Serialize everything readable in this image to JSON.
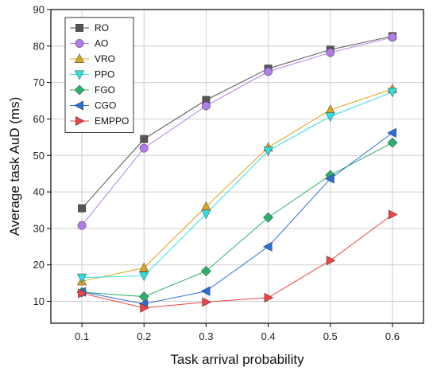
{
  "chart_data": {
    "type": "line",
    "title": "",
    "xlabel": "Task arrival probability",
    "ylabel": "Average task AuD (ms)",
    "x": [
      0.1,
      0.2,
      0.3,
      0.4,
      0.5,
      0.6
    ],
    "x_tick_labels": [
      "0.1",
      "0.2",
      "0.3",
      "0.4",
      "0.5",
      "0.6"
    ],
    "xlim": [
      0.05,
      0.65
    ],
    "ylim": [
      4,
      90
    ],
    "y_ticks": [
      10,
      20,
      30,
      40,
      50,
      60,
      70,
      80,
      90
    ],
    "grid": true,
    "legend_position": "top-left",
    "series": [
      {
        "name": "RO",
        "marker": "square",
        "color": "#555555",
        "values": [
          35.5,
          54.5,
          65.2,
          73.8,
          79.0,
          82.7
        ]
      },
      {
        "name": "AO",
        "marker": "circle",
        "color": "#b07ce8",
        "values": [
          30.8,
          52.0,
          63.6,
          73.0,
          78.2,
          82.4
        ]
      },
      {
        "name": "VRO",
        "marker": "triangle-up",
        "color": "#d9a520",
        "values": [
          15.5,
          19.2,
          36.0,
          52.2,
          62.5,
          68.2
        ]
      },
      {
        "name": "PPO",
        "marker": "triangle-down",
        "color": "#2ee0e0",
        "values": [
          16.5,
          17.0,
          34.0,
          51.3,
          60.7,
          67.4
        ]
      },
      {
        "name": "FGO",
        "marker": "diamond",
        "color": "#2eae6c",
        "values": [
          12.5,
          11.3,
          18.3,
          33.0,
          44.6,
          53.5
        ]
      },
      {
        "name": "CGO",
        "marker": "triangle-left",
        "color": "#2a6fd6",
        "values": [
          12.6,
          9.3,
          12.8,
          25.0,
          43.6,
          56.2
        ]
      },
      {
        "name": "EMPPO",
        "marker": "triangle-right",
        "color": "#ee4444",
        "values": [
          12.2,
          8.2,
          9.8,
          11.0,
          21.2,
          33.8
        ]
      }
    ]
  }
}
